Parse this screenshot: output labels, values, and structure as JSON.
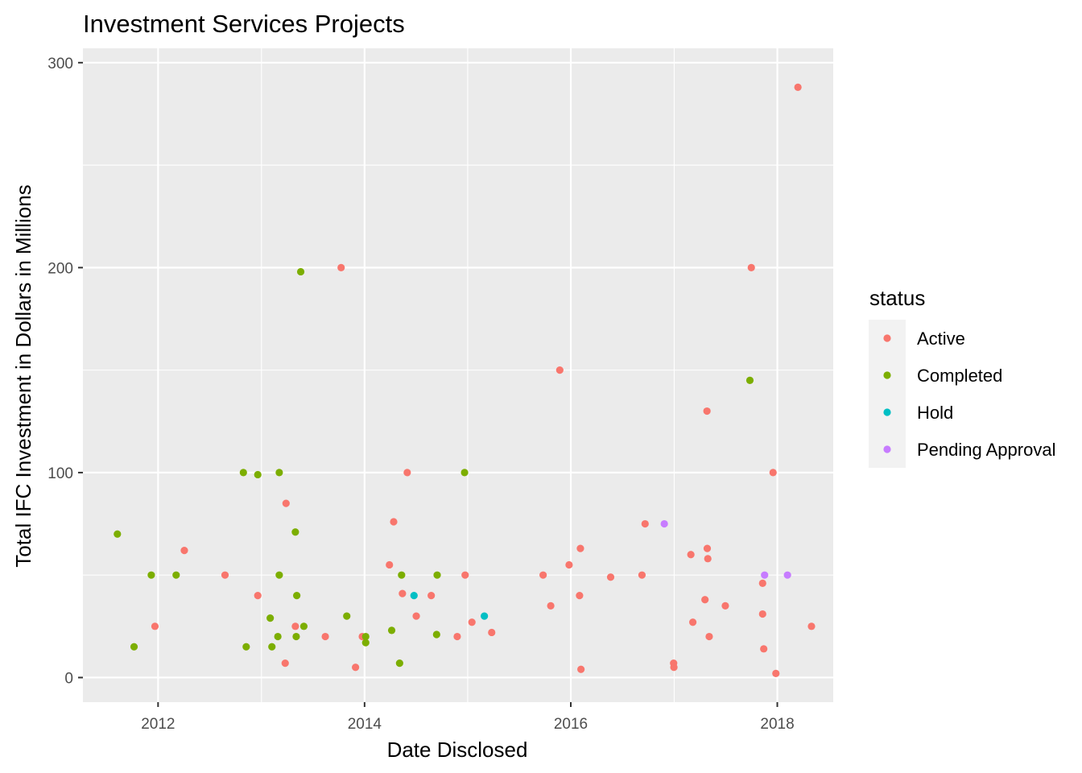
{
  "chart_data": {
    "type": "scatter",
    "title": "Investment Services Projects",
    "xlabel": "Date Disclosed",
    "ylabel": "Total IFC Investment in Dollars in Millions",
    "x_axis_type": "date",
    "xlim": [
      "2011-04-10",
      "2018-07-18"
    ],
    "ylim": [
      -12,
      307
    ],
    "x_ticks": [
      "2012",
      "2014",
      "2016",
      "2018"
    ],
    "y_ticks": [
      "0",
      "100",
      "200",
      "300"
    ],
    "grid": true,
    "legend": {
      "title": "status",
      "position": "right"
    },
    "colors": {
      "Active": "#F8766D",
      "Completed": "#7CAE00",
      "Hold": "#00BFC4",
      "Pending Approval": "#C77CFF"
    },
    "series": [
      {
        "name": "Active",
        "points": [
          {
            "x": "2011-12-21",
            "y": 25
          },
          {
            "x": "2012-04-03",
            "y": 62
          },
          {
            "x": "2012-08-25",
            "y": 50
          },
          {
            "x": "2012-12-19",
            "y": 40
          },
          {
            "x": "2013-03-29",
            "y": 85
          },
          {
            "x": "2013-03-26",
            "y": 7
          },
          {
            "x": "2013-05-01",
            "y": 25
          },
          {
            "x": "2013-08-15",
            "y": 20
          },
          {
            "x": "2013-10-10",
            "y": 200
          },
          {
            "x": "2013-11-30",
            "y": 5
          },
          {
            "x": "2013-12-24",
            "y": 20
          },
          {
            "x": "2014-03-30",
            "y": 55
          },
          {
            "x": "2014-04-14",
            "y": 76
          },
          {
            "x": "2014-05-15",
            "y": 41
          },
          {
            "x": "2014-06-01",
            "y": 100
          },
          {
            "x": "2014-07-03",
            "y": 30
          },
          {
            "x": "2014-08-25",
            "y": 40
          },
          {
            "x": "2014-11-25",
            "y": 20
          },
          {
            "x": "2014-12-23",
            "y": 50
          },
          {
            "x": "2015-01-16",
            "y": 27
          },
          {
            "x": "2015-03-27",
            "y": 22
          },
          {
            "x": "2015-09-25",
            "y": 50
          },
          {
            "x": "2015-10-22",
            "y": 35
          },
          {
            "x": "2015-11-23",
            "y": 150
          },
          {
            "x": "2015-12-26",
            "y": 55
          },
          {
            "x": "2016-02-01",
            "y": 40
          },
          {
            "x": "2016-02-04",
            "y": 63
          },
          {
            "x": "2016-02-06",
            "y": 4
          },
          {
            "x": "2016-05-21",
            "y": 49
          },
          {
            "x": "2016-09-09",
            "y": 50
          },
          {
            "x": "2016-09-20",
            "y": 75
          },
          {
            "x": "2016-12-30",
            "y": 7
          },
          {
            "x": "2016-12-31",
            "y": 5
          },
          {
            "x": "2017-03-01",
            "y": 60
          },
          {
            "x": "2017-03-08",
            "y": 27
          },
          {
            "x": "2017-04-20",
            "y": 38
          },
          {
            "x": "2017-04-27",
            "y": 130
          },
          {
            "x": "2017-04-28",
            "y": 63
          },
          {
            "x": "2017-04-30",
            "y": 58
          },
          {
            "x": "2017-05-05",
            "y": 20
          },
          {
            "x": "2017-07-01",
            "y": 35
          },
          {
            "x": "2017-10-01",
            "y": 200
          },
          {
            "x": "2017-11-10",
            "y": 46
          },
          {
            "x": "2017-11-10",
            "y": 31
          },
          {
            "x": "2017-11-14",
            "y": 14
          },
          {
            "x": "2017-12-17",
            "y": 100
          },
          {
            "x": "2017-12-27",
            "y": 2
          },
          {
            "x": "2018-03-15",
            "y": 288
          },
          {
            "x": "2018-05-02",
            "y": 25
          }
        ]
      },
      {
        "name": "Completed",
        "points": [
          {
            "x": "2011-08-10",
            "y": 70
          },
          {
            "x": "2011-10-08",
            "y": 15
          },
          {
            "x": "2011-12-08",
            "y": 50
          },
          {
            "x": "2012-03-05",
            "y": 50
          },
          {
            "x": "2012-10-29",
            "y": 100
          },
          {
            "x": "2012-11-08",
            "y": 15
          },
          {
            "x": "2012-12-19",
            "y": 99
          },
          {
            "x": "2013-02-01",
            "y": 29
          },
          {
            "x": "2013-02-07",
            "y": 15
          },
          {
            "x": "2013-02-28",
            "y": 20
          },
          {
            "x": "2013-03-05",
            "y": 50
          },
          {
            "x": "2013-03-05",
            "y": 100
          },
          {
            "x": "2013-05-01",
            "y": 71
          },
          {
            "x": "2013-05-06",
            "y": 40
          },
          {
            "x": "2013-05-04",
            "y": 20
          },
          {
            "x": "2013-05-20",
            "y": 198
          },
          {
            "x": "2013-05-31",
            "y": 25
          },
          {
            "x": "2013-10-30",
            "y": 30
          },
          {
            "x": "2014-01-05",
            "y": 17
          },
          {
            "x": "2014-01-05",
            "y": 20
          },
          {
            "x": "2014-04-07",
            "y": 23
          },
          {
            "x": "2014-05-05",
            "y": 7
          },
          {
            "x": "2014-05-12",
            "y": 50
          },
          {
            "x": "2014-09-13",
            "y": 21
          },
          {
            "x": "2014-09-15",
            "y": 50
          },
          {
            "x": "2014-12-21",
            "y": 100
          },
          {
            "x": "2017-09-26",
            "y": 145
          }
        ]
      },
      {
        "name": "Hold",
        "points": [
          {
            "x": "2014-06-25",
            "y": 40
          },
          {
            "x": "2015-03-01",
            "y": 30
          }
        ]
      },
      {
        "name": "Pending Approval",
        "points": [
          {
            "x": "2016-11-27",
            "y": 75
          },
          {
            "x": "2017-11-17",
            "y": 50
          },
          {
            "x": "2018-02-06",
            "y": 50
          }
        ]
      }
    ]
  }
}
